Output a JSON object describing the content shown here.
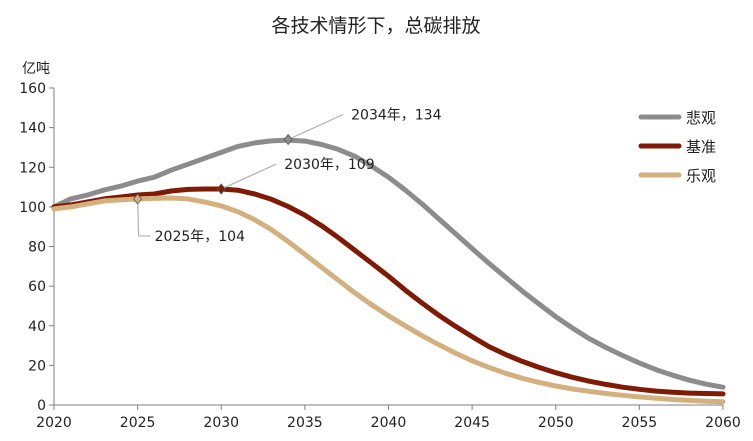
{
  "chart_data": {
    "type": "line",
    "title": "各技术情形下，总碳排放",
    "ylabel_unit": "亿吨",
    "xlabel": "",
    "xlim": [
      2020,
      2060
    ],
    "ylim": [
      0,
      160
    ],
    "xticks": [
      2020,
      2025,
      2030,
      2035,
      2040,
      2045,
      2050,
      2055,
      2060
    ],
    "yticks": [
      0,
      20,
      40,
      60,
      80,
      100,
      120,
      140,
      160
    ],
    "grid": false,
    "legend_position": "top-right",
    "series": [
      {
        "name": "悲观",
        "color": "#8c8c8c",
        "x": [
          2020,
          2021,
          2022,
          2023,
          2024,
          2025,
          2026,
          2027,
          2028,
          2029,
          2030,
          2031,
          2032,
          2033,
          2034,
          2035,
          2036,
          2037,
          2038,
          2039,
          2040,
          2041,
          2042,
          2043,
          2044,
          2045,
          2046,
          2047,
          2048,
          2049,
          2050,
          2051,
          2052,
          2053,
          2054,
          2055,
          2056,
          2057,
          2058,
          2059,
          2060
        ],
        "values": [
          100,
          104,
          106,
          108.5,
          110.5,
          113,
          115,
          118.5,
          121.5,
          124.5,
          127.5,
          130.5,
          132.3,
          133.3,
          133.7,
          133.2,
          131.5,
          129,
          125.5,
          120.5,
          115,
          108.5,
          101.5,
          94,
          86.5,
          79,
          71.5,
          64.5,
          57.5,
          51,
          44.5,
          38.8,
          33.5,
          29,
          25,
          21.2,
          17.8,
          15,
          12.5,
          10.5,
          9
        ]
      },
      {
        "name": "基准",
        "color": "#7f1a05",
        "x": [
          2020,
          2021,
          2022,
          2023,
          2024,
          2025,
          2026,
          2027,
          2028,
          2029,
          2030,
          2031,
          2032,
          2033,
          2034,
          2035,
          2036,
          2037,
          2038,
          2039,
          2040,
          2041,
          2042,
          2043,
          2044,
          2045,
          2046,
          2047,
          2048,
          2049,
          2050,
          2051,
          2052,
          2053,
          2054,
          2055,
          2056,
          2057,
          2058,
          2059,
          2060
        ],
        "values": [
          100,
          101,
          102.5,
          104,
          105,
          106,
          106.5,
          108,
          108.8,
          109,
          109,
          108.4,
          106.5,
          103.8,
          100.2,
          95.8,
          90.5,
          84.5,
          78,
          71.5,
          65,
          58,
          51.5,
          45.3,
          39.7,
          34.5,
          29.5,
          25.5,
          22,
          19,
          16.3,
          14,
          12,
          10.4,
          9,
          7.9,
          7,
          6.4,
          6,
          5.8,
          5.6
        ]
      },
      {
        "name": "乐观",
        "color": "#d4b07e",
        "x": [
          2020,
          2021,
          2022,
          2023,
          2024,
          2025,
          2026,
          2027,
          2028,
          2029,
          2030,
          2031,
          2032,
          2033,
          2034,
          2035,
          2036,
          2037,
          2038,
          2039,
          2040,
          2041,
          2042,
          2043,
          2044,
          2045,
          2046,
          2047,
          2048,
          2049,
          2050,
          2051,
          2052,
          2053,
          2054,
          2055,
          2056,
          2057,
          2058,
          2059,
          2060
        ],
        "values": [
          99,
          100,
          101.5,
          103,
          103.5,
          104,
          104.3,
          104.5,
          104,
          102.5,
          100.5,
          97.5,
          93.5,
          88.5,
          82.5,
          76,
          69.5,
          63,
          56.5,
          50.5,
          45,
          40,
          35,
          30.5,
          26.2,
          22.3,
          19,
          16,
          13.5,
          11.4,
          9.6,
          8.1,
          6.9,
          5.8,
          4.9,
          4.1,
          3.4,
          2.8,
          2.3,
          1.9,
          1.6
        ]
      }
    ],
    "annotations": [
      {
        "series": "悲观",
        "x": 2034,
        "y": 134,
        "label": "2034年，134",
        "placement": "upper-right"
      },
      {
        "series": "基准",
        "x": 2030,
        "y": 109,
        "label": "2030年，109",
        "placement": "upper-right"
      },
      {
        "series": "乐观",
        "x": 2025,
        "y": 104,
        "label": "2025年，104",
        "placement": "below-right"
      }
    ]
  }
}
